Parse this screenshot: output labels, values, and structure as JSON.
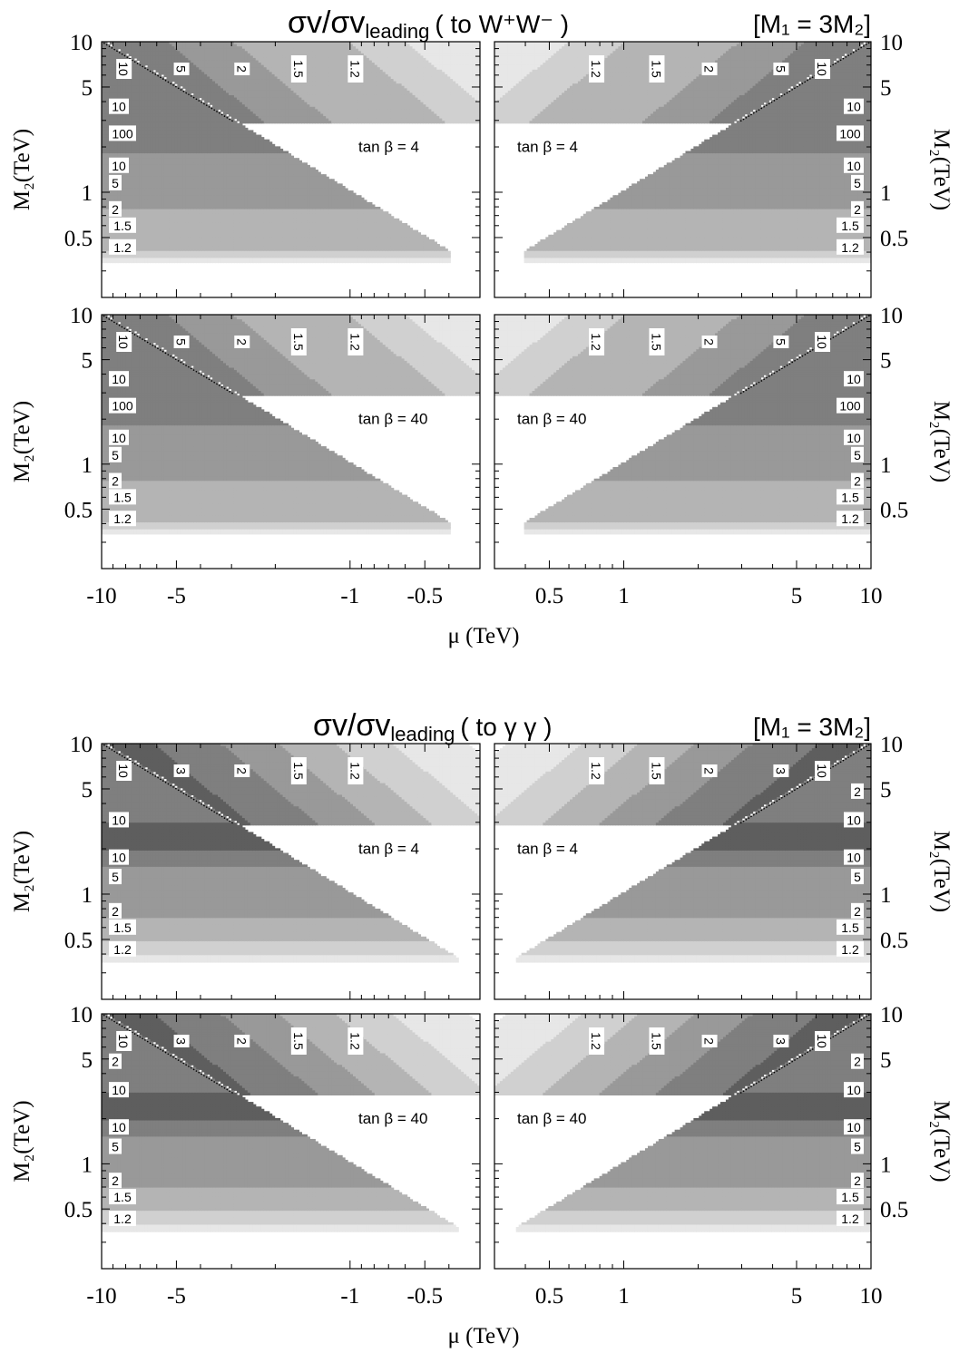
{
  "figures": [
    {
      "title": {
        "main": "σv/σv",
        "sub": "leading",
        "channel": "( to W⁺W⁻ )",
        "constraint": "[M₁ = 3M₂]"
      },
      "xlabel": "μ (TeV)",
      "ylabel": "M₂(TeV)"
    },
    {
      "title": {
        "main": "σv/σv",
        "sub": "leading",
        "channel": "( to γ γ )",
        "constraint": "[M₁ = 3M₂]"
      },
      "xlabel": "μ (TeV)",
      "ylabel": "M₂(TeV)"
    }
  ],
  "chart_data": [
    {
      "type": "heatmap",
      "figure": 0,
      "row": 0,
      "side": "mu-negative",
      "annotation": "tan β = 4",
      "x_scale": "log (|μ|)",
      "xlim": [
        -10,
        -0.3
      ],
      "ylim": [
        0.2,
        10
      ],
      "y_ticks": [
        "10",
        "5",
        "1",
        "0.5"
      ],
      "x_ticks": [],
      "contour_levels": [
        1.2,
        1.5,
        2,
        5,
        10,
        100
      ],
      "upper_labels": [
        "10",
        "5",
        "2",
        "1.5",
        "1.2"
      ],
      "side_labels": [
        "10",
        "100",
        "10",
        "5",
        "2",
        "1.5",
        "1.2"
      ],
      "peak_M2_TeV": 2.4
    },
    {
      "type": "heatmap",
      "figure": 0,
      "row": 0,
      "side": "mu-positive",
      "annotation": "tan β = 4",
      "x_scale": "log (μ)",
      "xlim": [
        0.3,
        10
      ],
      "ylim": [
        0.2,
        10
      ],
      "y_ticks": [
        "10",
        "5",
        "1",
        "0.5"
      ],
      "x_ticks": [],
      "contour_levels": [
        1.2,
        1.5,
        2,
        5,
        10,
        100
      ],
      "upper_labels": [
        "1.2",
        "1.5",
        "2",
        "5",
        "10"
      ],
      "side_labels": [
        "10",
        "100",
        "10",
        "5",
        "2",
        "1.5",
        "1.2"
      ],
      "peak_M2_TeV": 2.4
    },
    {
      "type": "heatmap",
      "figure": 0,
      "row": 1,
      "side": "mu-negative",
      "annotation": "tan β = 40",
      "x_scale": "log (|μ|)",
      "xlim": [
        -10,
        -0.3
      ],
      "ylim": [
        0.2,
        10
      ],
      "y_ticks": [
        "10",
        "5",
        "1",
        "0.5"
      ],
      "x_ticks": [
        "-10",
        "-5",
        "-1",
        "-0.5"
      ],
      "contour_levels": [
        1.2,
        1.5,
        2,
        5,
        10,
        100
      ],
      "upper_labels": [
        "10",
        "5",
        "2",
        "1.5",
        "1.2"
      ],
      "side_labels": [
        "10",
        "100",
        "10",
        "5",
        "2",
        "1.5",
        "1.2"
      ],
      "peak_M2_TeV": 2.4
    },
    {
      "type": "heatmap",
      "figure": 0,
      "row": 1,
      "side": "mu-positive",
      "annotation": "tan β = 40",
      "x_scale": "log (μ)",
      "xlim": [
        0.3,
        10
      ],
      "ylim": [
        0.2,
        10
      ],
      "y_ticks": [
        "10",
        "5",
        "1",
        "0.5"
      ],
      "x_ticks": [
        "0.5",
        "1",
        "5",
        "10"
      ],
      "contour_levels": [
        1.2,
        1.5,
        2,
        5,
        10,
        100
      ],
      "upper_labels": [
        "1.2",
        "1.5",
        "2",
        "5",
        "10"
      ],
      "side_labels": [
        "10",
        "100",
        "10",
        "5",
        "2",
        "1.5",
        "1.2"
      ],
      "peak_M2_TeV": 2.4
    },
    {
      "type": "heatmap",
      "figure": 1,
      "row": 0,
      "side": "mu-negative",
      "annotation": "tan β = 4",
      "x_scale": "log (|μ|)",
      "xlim": [
        -10,
        -0.3
      ],
      "ylim": [
        0.2,
        10
      ],
      "y_ticks": [
        "10",
        "5",
        "1",
        "0.5"
      ],
      "x_ticks": [],
      "contour_levels": [
        1.2,
        1.5,
        2,
        3,
        5,
        10
      ],
      "upper_labels": [
        "10",
        "3",
        "2",
        "1.5",
        "1.2"
      ],
      "side_labels": [
        "10",
        "10",
        "5",
        "2",
        "1.5",
        "1.2"
      ],
      "peak_M2_TeV": 2.4
    },
    {
      "type": "heatmap",
      "figure": 1,
      "row": 0,
      "side": "mu-positive",
      "annotation": "tan β = 4",
      "x_scale": "log (μ)",
      "xlim": [
        0.3,
        10
      ],
      "ylim": [
        0.2,
        10
      ],
      "y_ticks": [
        "10",
        "5",
        "1",
        "0.5"
      ],
      "x_ticks": [],
      "contour_levels": [
        1.2,
        1.5,
        2,
        3,
        5,
        10
      ],
      "upper_labels": [
        "1.2",
        "1.5",
        "2",
        "3",
        "10"
      ],
      "side_labels": [
        "2",
        "10",
        "10",
        "5",
        "2",
        "1.5",
        "1.2"
      ],
      "peak_M2_TeV": 2.4
    },
    {
      "type": "heatmap",
      "figure": 1,
      "row": 1,
      "side": "mu-negative",
      "annotation": "tan β = 40",
      "x_scale": "log (|μ|)",
      "xlim": [
        -10,
        -0.3
      ],
      "ylim": [
        0.2,
        10
      ],
      "y_ticks": [
        "10",
        "5",
        "1",
        "0.5"
      ],
      "x_ticks": [
        "-10",
        "-5",
        "-1",
        "-0.5"
      ],
      "contour_levels": [
        1.2,
        1.5,
        2,
        3,
        5,
        10
      ],
      "upper_labels": [
        "10",
        "3",
        "2",
        "1.5",
        "1.2"
      ],
      "side_labels": [
        "2",
        "10",
        "10",
        "5",
        "2",
        "1.5",
        "1.2"
      ],
      "peak_M2_TeV": 2.4
    },
    {
      "type": "heatmap",
      "figure": 1,
      "row": 1,
      "side": "mu-positive",
      "annotation": "tan β = 40",
      "x_scale": "log (μ)",
      "xlim": [
        0.3,
        10
      ],
      "ylim": [
        0.2,
        10
      ],
      "y_ticks": [
        "10",
        "5",
        "1",
        "0.5"
      ],
      "x_ticks": [
        "0.5",
        "1",
        "5",
        "10"
      ],
      "contour_levels": [
        1.2,
        1.5,
        2,
        3,
        5,
        10
      ],
      "upper_labels": [
        "1.2",
        "1.5",
        "2",
        "3",
        "10"
      ],
      "side_labels": [
        "2",
        "10",
        "10",
        "5",
        "2",
        "1.5",
        "1.2"
      ],
      "peak_M2_TeV": 2.4
    }
  ]
}
